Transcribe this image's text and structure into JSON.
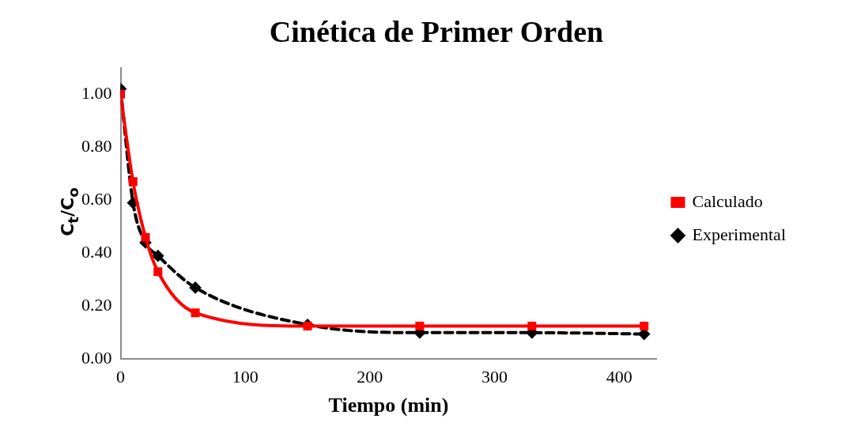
{
  "chart_data": {
    "type": "line",
    "title": "Cinética de Primer Orden",
    "xlabel": "Tiempo (min)",
    "ylabel": "C$_{t}$/C$_{o}$",
    "xlim": [
      0,
      430
    ],
    "xticks": [
      0,
      100,
      200,
      300,
      400
    ],
    "ylim": [
      0,
      1.1
    ],
    "yticks": [
      {
        "value": 0,
        "label": "0.00"
      },
      {
        "value": 0.2,
        "label": "0.20"
      },
      {
        "value": 0.4,
        "label": "0.40"
      },
      {
        "value": 0.6,
        "label": "0.60"
      },
      {
        "value": 0.8,
        "label": "0.80"
      },
      {
        "value": 1,
        "label": "1.00"
      }
    ],
    "grid": false,
    "legend": "right",
    "series": [
      {
        "name": "Experimental",
        "color": "#000000",
        "marker": "diamond",
        "line_style": "dashed",
        "x": [
          0,
          10,
          20,
          30,
          60,
          150,
          240,
          330,
          420
        ],
        "values": [
          1.02,
          0.59,
          0.44,
          0.39,
          0.27,
          0.13,
          0.1,
          0.1,
          0.095
        ]
      },
      {
        "name": "Calculado",
        "color": "#ff0000",
        "marker": "square",
        "line_style": "solid",
        "x": [
          0,
          10,
          20,
          30,
          60,
          150,
          240,
          330,
          420
        ],
        "values": [
          1.0,
          0.67,
          0.46,
          0.33,
          0.175,
          0.125,
          0.125,
          0.125,
          0.125
        ]
      }
    ]
  }
}
